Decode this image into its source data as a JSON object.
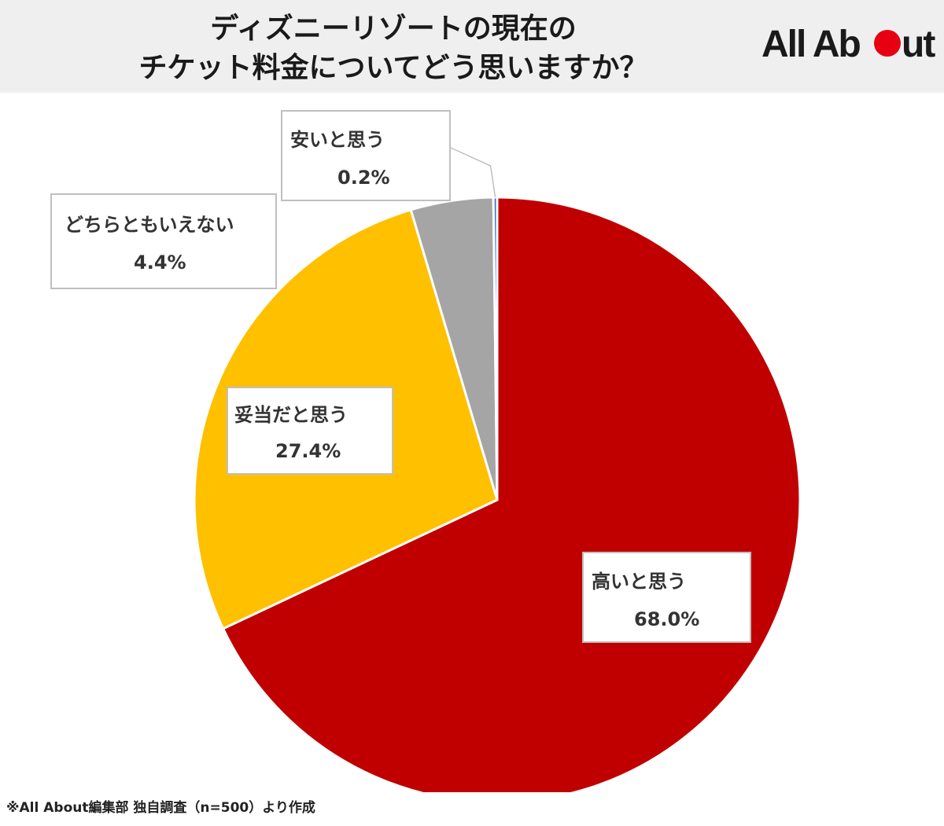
{
  "title": {
    "line1": "ディズニーリゾートの現在の",
    "line2": "チケット料金についてどう思いますか？"
  },
  "logo": {
    "text_left": "All Ab",
    "text_right": "ut",
    "dot_color": "#e60012"
  },
  "chart_data": {
    "type": "pie",
    "title": "ディズニーリゾートの現在のチケット料金についてどう思いますか？",
    "start_angle_deg": 0,
    "direction": "clockwise",
    "slices": [
      {
        "label": "高いと思う",
        "value": 68.0,
        "display": "68.0%",
        "color": "#c00000"
      },
      {
        "label": "妥当だと思う",
        "value": 27.4,
        "display": "27.4%",
        "color": "#ffc000"
      },
      {
        "label": "どちらともいえない",
        "value": 4.4,
        "display": "4.4%",
        "color": "#a5a5a5"
      },
      {
        "label": "安いと思う",
        "value": 0.2,
        "display": "0.2%",
        "color": "#4472c4"
      }
    ]
  },
  "footnote": "※All About編集部 独自調査（n=500）より作成"
}
